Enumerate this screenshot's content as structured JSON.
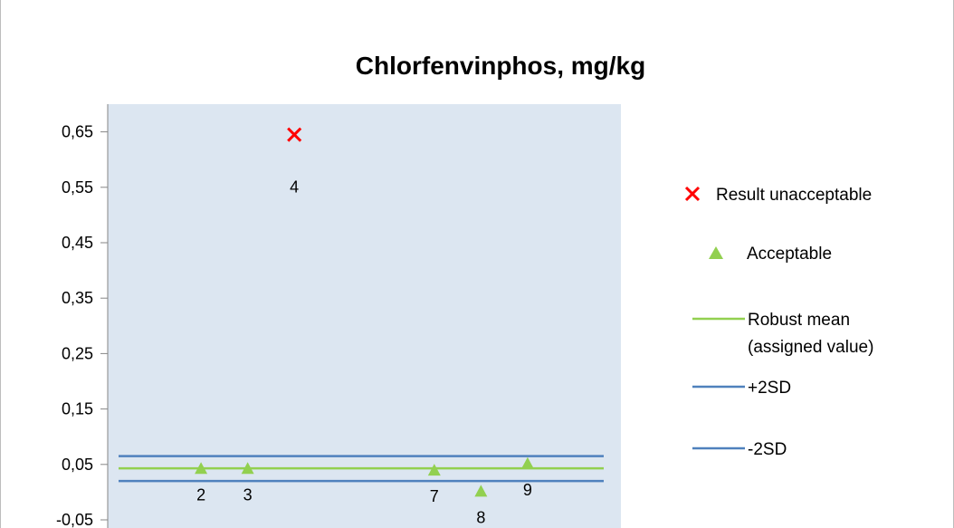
{
  "chart_data": {
    "type": "scatter",
    "title": "Chlorfenvinphos, mg/kg",
    "ylim": [
      -0.05,
      0.7
    ],
    "xlim": [
      0,
      11
    ],
    "y_ticks": [
      "0,65",
      "0,55",
      "0,45",
      "0,35",
      "0,25",
      "0,15",
      "0,05",
      "-0,05"
    ],
    "y_tick_values": [
      0.65,
      0.55,
      0.45,
      0.35,
      0.25,
      0.15,
      0.05,
      -0.05
    ],
    "plot_background": "#dce6f1",
    "series": [
      {
        "name": "Result unacceptable",
        "marker": "x",
        "color": "#ff0000",
        "points": [
          {
            "x": 4,
            "y": 0.645,
            "label": "4"
          }
        ]
      },
      {
        "name": "Acceptable",
        "marker": "triangle",
        "color": "#92d050",
        "points": [
          {
            "x": 2,
            "y": 0.041,
            "label": "2"
          },
          {
            "x": 3,
            "y": 0.041,
            "label": "3"
          },
          {
            "x": 7,
            "y": 0.038,
            "label": "7"
          },
          {
            "x": 8,
            "y": 0.0,
            "label": "8"
          },
          {
            "x": 9,
            "y": 0.05,
            "label": "9"
          }
        ]
      }
    ],
    "reference_lines": [
      {
        "name": "Robust mean",
        "name_line2": "(assigned value)",
        "y": 0.043,
        "color": "#92d050"
      },
      {
        "name": "+2SD",
        "y": 0.065,
        "color": "#4f81bd"
      },
      {
        "name": "-2SD",
        "y": 0.02,
        "color": "#4f81bd"
      }
    ],
    "legend": {
      "position": "right"
    }
  }
}
